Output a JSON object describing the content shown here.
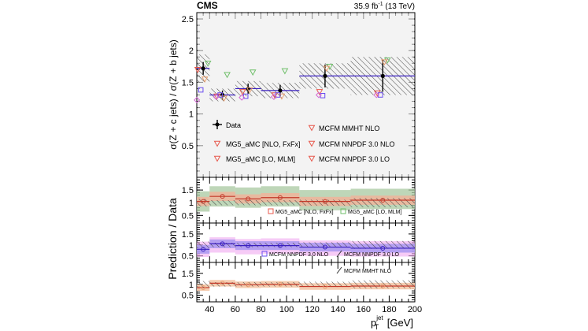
{
  "header": {
    "experiment": "CMS",
    "lumi_prefix": "35.9 fb",
    "lumi_exp": "-1",
    "lumi_suffix": " (13 TeV)"
  },
  "axes": {
    "ylabel_main": "σ(Z + c jets) / σ(Z + b jets)",
    "ylabel_ratio": "Prediction / Data",
    "xlabel_base": "p",
    "xlabel_sub": "T",
    "xlabel_sup": "jet",
    "xlabel_unit": " [GeV]"
  },
  "colors": {
    "data": "#000000",
    "mg5_nlo": "#e8584c",
    "mg5_lo": "#6fbf6a",
    "mcfm_nnpdf30_nlo": "#6a4cf0",
    "mcfm_nnpdf30_lo": "#d46ad4",
    "mcfm_mmht": "#e8a070",
    "line_nlo": "#c43a2a",
    "line_nnpdf": "#3a20c0",
    "band_nlo": "#f0b49a",
    "band_lo": "#a8c8a0",
    "band_nnpdf": "#a898f0",
    "band_lo_pink": "#f0a8f0",
    "band_mmht": "#f4c8a8"
  },
  "legend_main": {
    "data": "Data",
    "mg5_nlo": "MG5_aMC [NLO, FxFx]",
    "mg5_lo": "MG5_aMC [LO, MLM]",
    "mcfm_mmht": "MCFM MMHT NLO",
    "mcfm_nnpdf_nlo": "MCFM NNPDF 3.0 NLO",
    "mcfm_nnpdf_lo": "MCFM NNPDF 3.0 LO"
  },
  "legend_ratio1": {
    "a": "MG5_aMC [NLO, FxFx]",
    "b": "MG5_aMC [LO, MLM]"
  },
  "legend_ratio2": {
    "a": "MCFM NNPDF 3.0 NLO",
    "b": "MCFM NNPDF 3.0 LO"
  },
  "legend_ratio3": {
    "a": "MCFM MMHT NLO"
  },
  "chart_data": {
    "type": "scatter",
    "x_bins": [
      30,
      40,
      60,
      80,
      110,
      150,
      200
    ],
    "x_centers": [
      35,
      50,
      70,
      95,
      130,
      175
    ],
    "xlim": [
      30,
      200
    ],
    "xticks": [
      40,
      60,
      80,
      100,
      120,
      140,
      160,
      180,
      200
    ],
    "main": {
      "ylim": [
        0,
        2.6
      ],
      "yticks": [
        "0.5",
        "1",
        "1.5",
        "2",
        "2.5"
      ],
      "data": {
        "values": [
          1.72,
          1.3,
          1.4,
          1.37,
          1.6,
          1.6
        ],
        "stat_err": [
          0.1,
          0.07,
          0.08,
          0.09,
          0.18,
          0.25
        ],
        "total_unc": [
          0.22,
          0.1,
          0.12,
          0.12,
          0.2,
          0.3
        ]
      },
      "mg5_nlo": [
        1.7,
        1.28,
        1.35,
        1.3,
        1.35,
        1.33
      ],
      "mg5_lo": [
        1.8,
        1.62,
        1.66,
        1.68,
        1.75,
        1.85
      ],
      "mcfm_mmht": [
        1.55,
        1.25,
        1.38,
        1.28,
        1.72,
        1.82
      ],
      "mcfm_nnpdf_nlo": [
        1.38,
        1.3,
        1.28,
        1.3,
        1.29,
        1.3
      ],
      "mcfm_nnpdf_lo": [
        1.22,
        1.27,
        1.26,
        1.27,
        1.3,
        1.3
      ]
    },
    "ratio_mg5": {
      "ylim": [
        0.2,
        2.0
      ],
      "yticks": [
        "0.5",
        "1",
        "1.5"
      ],
      "nlo": [
        1.05,
        1.25,
        1.15,
        1.2,
        1.05,
        1.1
      ],
      "lo": [
        1.05,
        1.25,
        1.2,
        1.25,
        1.1,
        1.15
      ],
      "data_unc": [
        0.15,
        0.1,
        0.1,
        0.1,
        0.12,
        0.18
      ]
    },
    "ratio_nnpdf": {
      "ylim": [
        0.2,
        2.0
      ],
      "yticks": [
        "0.5",
        "1",
        "1.5"
      ],
      "nlo": [
        0.8,
        1.05,
        0.97,
        0.97,
        0.9,
        0.85
      ],
      "lo": [
        0.8,
        1.0,
        0.92,
        0.95,
        0.85,
        0.82
      ],
      "data_unc": [
        0.15,
        0.1,
        0.1,
        0.1,
        0.12,
        0.18
      ]
    },
    "ratio_mmht": {
      "ylim": [
        0.2,
        2.0
      ],
      "yticks": [
        "0.5",
        "1",
        "1.5"
      ],
      "nlo": [
        0.85,
        1.05,
        0.98,
        1.0,
        0.9,
        0.92
      ],
      "data_unc": [
        0.15,
        0.1,
        0.1,
        0.1,
        0.12,
        0.18
      ]
    }
  }
}
